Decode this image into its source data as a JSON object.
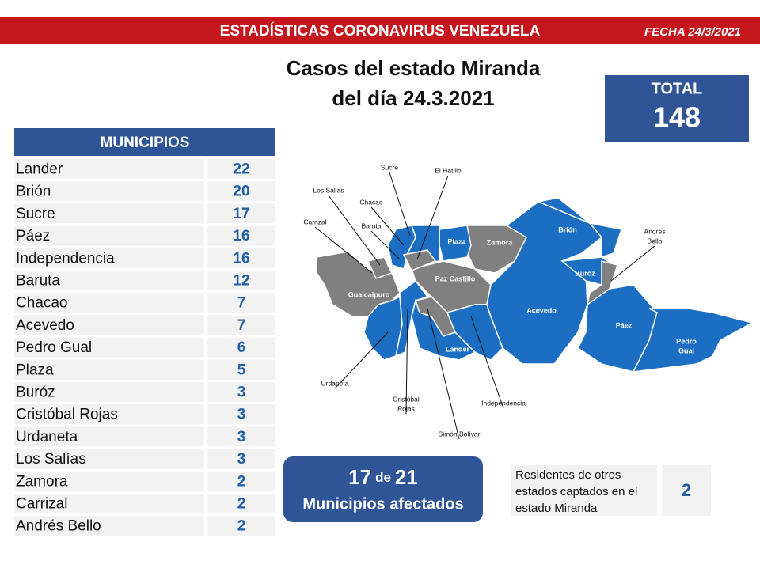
{
  "header": {
    "title": "ESTADÍSTICAS CORONAVIRUS VENEZUELA",
    "date": "FECHA 24/3/2021"
  },
  "title": [
    "Casos del estado Miranda",
    "del día 24.3.2021"
  ],
  "total": {
    "label": "TOTAL",
    "value": "148"
  },
  "table": {
    "header": "MUNICIPIOS",
    "rows": [
      [
        "Lander",
        "22"
      ],
      [
        "Brión",
        "20"
      ],
      [
        "Sucre",
        "17"
      ],
      [
        "Páez",
        "16"
      ],
      [
        "Independencia",
        "16"
      ],
      [
        "Baruta",
        "12"
      ],
      [
        "Chacao",
        "7"
      ],
      [
        "Acevedo",
        "7"
      ],
      [
        "Pedro Gual",
        "6"
      ],
      [
        "Plaza",
        "5"
      ],
      [
        "Buróz",
        "3"
      ],
      [
        "Cristóbal Rojas",
        "3"
      ],
      [
        "Urdaneta",
        "3"
      ],
      [
        "Los Salías",
        "3"
      ],
      [
        "Zamora",
        "2"
      ],
      [
        "Carrizal",
        "2"
      ],
      [
        "Andrés Bello",
        "2"
      ]
    ]
  },
  "map": {
    "labels": [
      [
        "Plaza"
      ],
      [
        "Zamora"
      ],
      [
        "Brión"
      ],
      [
        "Buroz"
      ],
      [
        "Guaicaipuro"
      ],
      [
        "Paz Castillo"
      ],
      [
        "Acevedo"
      ],
      [
        "Páez"
      ],
      [
        "Pedro",
        "Gual"
      ],
      [
        "Lander"
      ],
      [
        "Sucre"
      ],
      [
        "El Hatillo"
      ],
      [
        "Los Salias"
      ],
      [
        "Chacao"
      ],
      [
        "Baruta"
      ],
      [
        "Carrizal"
      ],
      [
        "Andrés",
        "Bello"
      ],
      [
        "Urdaneta"
      ],
      [
        "Cristóbal",
        "Rojas"
      ],
      [
        "Independencia"
      ],
      [
        "Simón Bolívar"
      ]
    ]
  },
  "summary": {
    "affected": "17",
    "joiner": "de",
    "of": "21",
    "caption": "Municipios afectados"
  },
  "residents": {
    "text": [
      "Residentes de otros",
      "estados captados en el",
      "estado Miranda"
    ],
    "value": "2"
  }
}
